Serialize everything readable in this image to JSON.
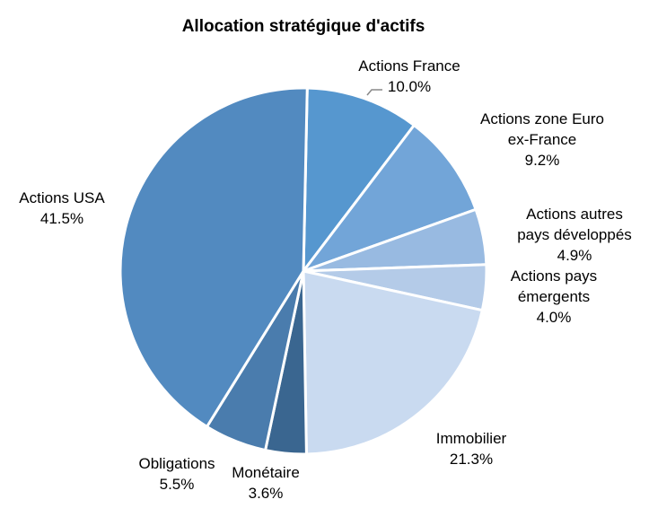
{
  "chart_data": {
    "type": "pie",
    "title": "Allocation stratégique d'actifs",
    "slices": [
      {
        "label_lines": [
          "Actions France"
        ],
        "value": 10.0,
        "value_label": "10.0%",
        "color": "#5697cf"
      },
      {
        "label_lines": [
          "Actions zone Euro",
          "ex-France"
        ],
        "value": 9.2,
        "value_label": "9.2%",
        "color": "#72a5d8"
      },
      {
        "label_lines": [
          "Actions autres",
          "pays développés"
        ],
        "value": 4.9,
        "value_label": "4.9%",
        "color": "#98bae1"
      },
      {
        "label_lines": [
          "Actions pays",
          "émergents"
        ],
        "value": 4.0,
        "value_label": "4.0%",
        "color": "#b4cbe8"
      },
      {
        "label_lines": [
          "Immobilier"
        ],
        "value": 21.3,
        "value_label": "21.3%",
        "color": "#c9daf0"
      },
      {
        "label_lines": [
          "Monétaire"
        ],
        "value": 3.6,
        "value_label": "3.6%",
        "color": "#3a6690"
      },
      {
        "label_lines": [
          "Obligations"
        ],
        "value": 5.5,
        "value_label": "5.5%",
        "color": "#4a7cad"
      },
      {
        "label_lines": [
          "Actions USA"
        ],
        "value": 41.5,
        "value_label": "41.5%",
        "color": "#528ac0"
      }
    ]
  }
}
